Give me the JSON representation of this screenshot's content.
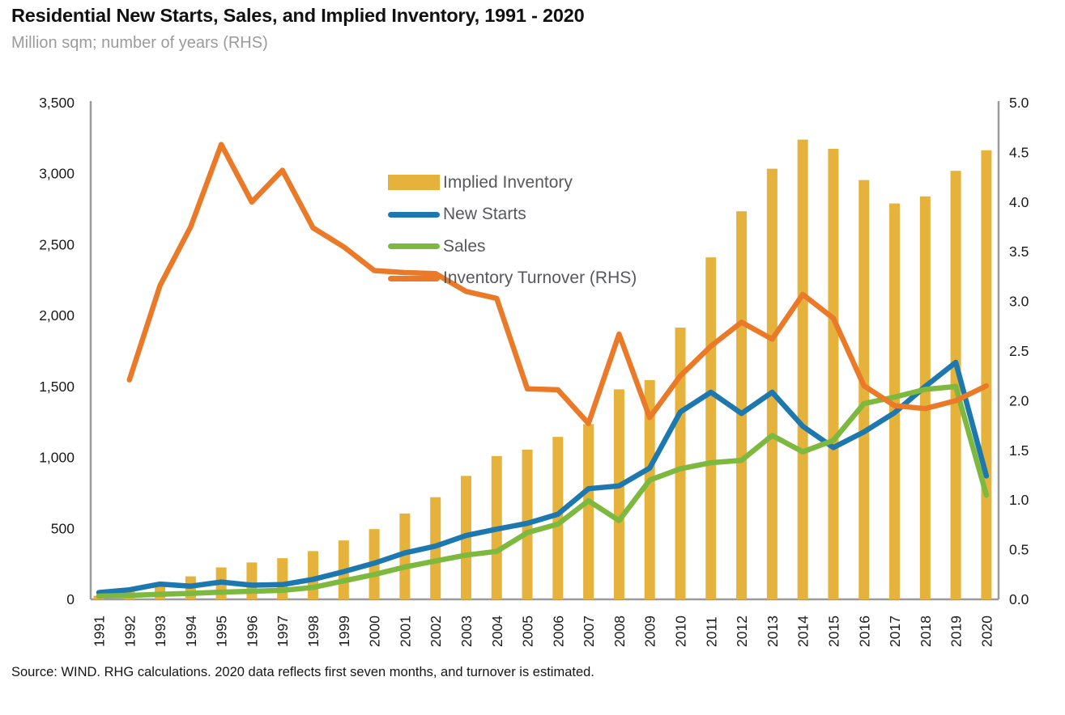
{
  "header": {
    "title": "Residential New Starts, Sales, and Implied Inventory, 1991 - 2020",
    "subtitle": "Million sqm; number of years (RHS)"
  },
  "footer": {
    "source": "Source: WIND. RHG calculations. 2020 data reflects first seven months, and turnover is estimated."
  },
  "colors": {
    "gold": "#e5b23c",
    "blue": "#1c78ae",
    "green": "#7db83f",
    "orange": "#ea7a28",
    "axis_line": "#9a9a9a",
    "tick_label": "#1a1a1a",
    "legend_text": "#57585c"
  },
  "chart_data": {
    "type": "combo_bar_line",
    "title": "Residential New Starts, Sales, and Implied Inventory, 1991 - 2020",
    "subtitle": "Million sqm; number of years (RHS)",
    "grid": false,
    "legend_position": "top-center",
    "categories": [
      "1991",
      "1992",
      "1993",
      "1994",
      "1995",
      "1996",
      "1997",
      "1998",
      "1999",
      "2000",
      "2001",
      "2002",
      "2003",
      "2004",
      "2005",
      "2006",
      "2007",
      "2008",
      "2009",
      "2010",
      "2011",
      "2012",
      "2013",
      "2014",
      "2015",
      "2016",
      "2017",
      "2018",
      "2019",
      "2020"
    ],
    "series": [
      {
        "name": "Implied Inventory",
        "type": "bar",
        "axis": "left",
        "color": "gold",
        "values": [
          25,
          60,
          120,
          162,
          225,
          260,
          290,
          340,
          415,
          495,
          605,
          720,
          870,
          1010,
          1055,
          1145,
          1235,
          1480,
          1545,
          1915,
          2410,
          2735,
          3035,
          3240,
          3175,
          2955,
          2790,
          2840,
          3020,
          3165
        ]
      },
      {
        "name": "New Starts",
        "type": "line",
        "axis": "left",
        "color": "blue",
        "values": [
          48,
          67,
          108,
          93,
          122,
          100,
          104,
          141,
          195,
          255,
          327,
          375,
          450,
          495,
          536,
          600,
          780,
          800,
          925,
          1320,
          1460,
          1310,
          1460,
          1220,
          1070,
          1180,
          1315,
          1500,
          1670,
          870
        ]
      },
      {
        "name": "Sales",
        "type": "line",
        "axis": "left",
        "color": "green",
        "values": [
          23,
          28,
          36,
          42,
          51,
          57,
          63,
          84,
          130,
          175,
          228,
          270,
          312,
          338,
          470,
          530,
          695,
          555,
          840,
          920,
          963,
          980,
          1155,
          1040,
          1120,
          1380,
          1425,
          1480,
          1500,
          735
        ]
      },
      {
        "name": "Inventory Turnover (RHS)",
        "type": "line",
        "axis": "right",
        "color": "orange",
        "values": [
          null,
          2.21,
          3.16,
          3.75,
          4.58,
          4.0,
          4.32,
          3.74,
          3.55,
          3.31,
          3.29,
          3.28,
          3.1,
          3.03,
          2.12,
          2.11,
          1.77,
          2.67,
          1.83,
          2.25,
          2.55,
          2.79,
          2.62,
          3.07,
          2.83,
          2.15,
          1.95,
          1.92,
          2.0,
          2.15
        ]
      }
    ],
    "y_axis_left": {
      "min": 0,
      "max": 3500,
      "tick_values": [
        0,
        500,
        1000,
        1500,
        2000,
        2500,
        3000,
        3500
      ],
      "tick_labels": [
        "0",
        "500",
        "1,000",
        "1,500",
        "2,000",
        "2,500",
        "3,000",
        "3,500"
      ]
    },
    "y_axis_right": {
      "min": 0,
      "max": 5,
      "tick_values": [
        0,
        0.5,
        1,
        1.5,
        2,
        2.5,
        3,
        3.5,
        4,
        4.5,
        5
      ],
      "tick_labels": [
        "0.0",
        "0.5",
        "1.0",
        "1.5",
        "2.0",
        "2.5",
        "3.0",
        "3.5",
        "4.0",
        "4.5",
        "5.0"
      ]
    }
  }
}
